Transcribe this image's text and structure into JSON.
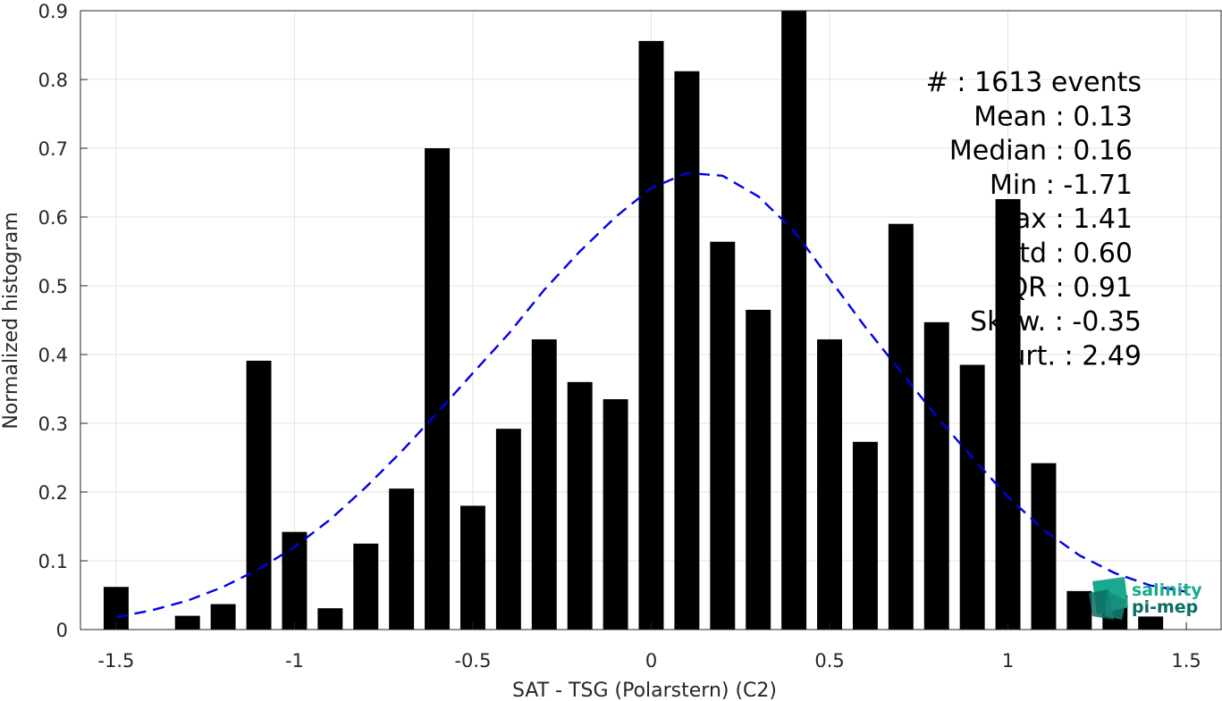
{
  "chart_data": {
    "type": "bar",
    "xlabel": "SAT - TSG (Polarstern) (C2)",
    "ylabel": "Normalized histogram",
    "xlim": [
      -1.6,
      1.6
    ],
    "ylim": [
      0,
      0.9
    ],
    "xticks": [
      -1.5,
      -1,
      -0.5,
      0,
      0.5,
      1,
      1.5
    ],
    "xtick_labels": [
      "-1.5",
      "-1",
      "-0.5",
      "0",
      "0.5",
      "1",
      "1.5"
    ],
    "yticks": [
      0,
      0.1,
      0.2,
      0.3,
      0.4,
      0.5,
      0.6,
      0.7,
      0.8,
      0.9
    ],
    "ytick_labels": [
      "0",
      "0.1",
      "0.2",
      "0.3",
      "0.4",
      "0.5",
      "0.6",
      "0.7",
      "0.8",
      "0.9"
    ],
    "grid": true,
    "bar_color": "#000000",
    "bar_width": 0.07,
    "x": [
      -1.5,
      -1.3,
      -1.2,
      -1.1,
      -1.0,
      -0.9,
      -0.8,
      -0.7,
      -0.6,
      -0.5,
      -0.4,
      -0.3,
      -0.2,
      -0.1,
      0.0,
      0.1,
      0.2,
      0.3,
      0.4,
      0.5,
      0.6,
      0.7,
      0.8,
      0.9,
      1.0,
      1.1,
      1.2,
      1.3,
      1.4
    ],
    "values": [
      0.062,
      0.02,
      0.037,
      0.391,
      0.142,
      0.031,
      0.125,
      0.205,
      0.7,
      0.18,
      0.292,
      0.422,
      0.36,
      0.335,
      0.856,
      0.812,
      0.564,
      0.465,
      0.9,
      0.422,
      0.273,
      0.59,
      0.447,
      0.385,
      0.626,
      0.242,
      0.056,
      0.05,
      0.019
    ],
    "fit": {
      "type": "line",
      "style": "dashed",
      "color": "#0000e6",
      "x": [
        -1.5,
        -1.4,
        -1.3,
        -1.2,
        -1.1,
        -1.0,
        -0.9,
        -0.8,
        -0.7,
        -0.6,
        -0.5,
        -0.4,
        -0.3,
        -0.2,
        -0.1,
        0.0,
        0.1,
        0.2,
        0.3,
        0.4,
        0.5,
        0.6,
        0.7,
        0.8,
        0.9,
        1.0,
        1.1,
        1.2,
        1.3,
        1.4,
        1.5
      ],
      "y": [
        0.018,
        0.028,
        0.042,
        0.062,
        0.088,
        0.12,
        0.16,
        0.207,
        0.259,
        0.315,
        0.373,
        0.43,
        0.494,
        0.55,
        0.6,
        0.642,
        0.664,
        0.66,
        0.63,
        0.58,
        0.51,
        0.44,
        0.375,
        0.31,
        0.25,
        0.193,
        0.145,
        0.108,
        0.082,
        0.064,
        0.055
      ]
    }
  },
  "stats": [
    "#  : 1613 events",
    "Mean : 0.13",
    "Median : 0.16",
    "Min : -1.71",
    "ax : 1.41",
    "Std : 0.60",
    "QR : 0.91",
    "Skew. : -0.35",
    "urt. : 2.49"
  ],
  "logo": {
    "line1": "salinity",
    "line2": "pi-mep",
    "color1": "#1aa88e",
    "color2": "#0d6e63"
  }
}
